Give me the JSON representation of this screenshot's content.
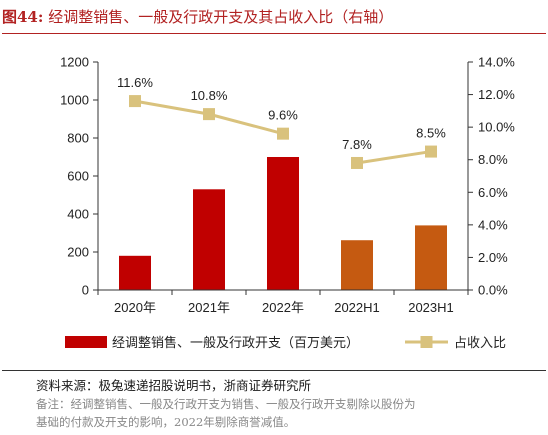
{
  "header": {
    "figure_label": "图44:",
    "title": "经调整销售、一般及行政开支及其占收入比（右轴）"
  },
  "footer": {
    "source": "资料来源：极兔速递招股说明书，浙商证券研究所",
    "note_line1": "备注：经调整销售、一般及行政开支为销售、一般及行政开支剔除以股份为",
    "note_line2": "基础的付款及开支的影响，2022年剔除商誉减值。"
  },
  "colors": {
    "bar_red": "#c00000",
    "bar_orange": "#c55a11",
    "line": "#d9c27d",
    "title": "#b22222"
  },
  "chart_data": {
    "type": "bar+line",
    "categories": [
      "2020年",
      "2021年",
      "2022年",
      "2022H1",
      "2023H1"
    ],
    "series": [
      {
        "name": "经调整销售、一般及行政开支（百万美元）",
        "kind": "bar",
        "axis": "left",
        "values": [
          180,
          530,
          700,
          262,
          340
        ],
        "colors": [
          "#c00000",
          "#c00000",
          "#c00000",
          "#c55a11",
          "#c55a11"
        ]
      },
      {
        "name": "占收入比",
        "kind": "line",
        "axis": "right",
        "values": [
          11.6,
          10.8,
          9.6,
          7.8,
          8.5
        ],
        "segments": [
          [
            0,
            2
          ],
          [
            3,
            4
          ]
        ],
        "labels": [
          "11.6%",
          "10.8%",
          "9.6%",
          "7.8%",
          "8.5%"
        ]
      }
    ],
    "left_axis": {
      "ylim": [
        0,
        1200
      ],
      "ticks": [
        "0",
        "200",
        "400",
        "600",
        "800",
        "1000",
        "1200"
      ]
    },
    "right_axis": {
      "ylim": [
        0,
        14
      ],
      "ticks": [
        "0.0%",
        "2.0%",
        "4.0%",
        "6.0%",
        "8.0%",
        "10.0%",
        "12.0%",
        "14.0%"
      ]
    },
    "legend": {
      "placement": "bottom",
      "items": [
        "经调整销售、一般及行政开支（百万美元）",
        "占收入比"
      ]
    },
    "grid": false
  }
}
